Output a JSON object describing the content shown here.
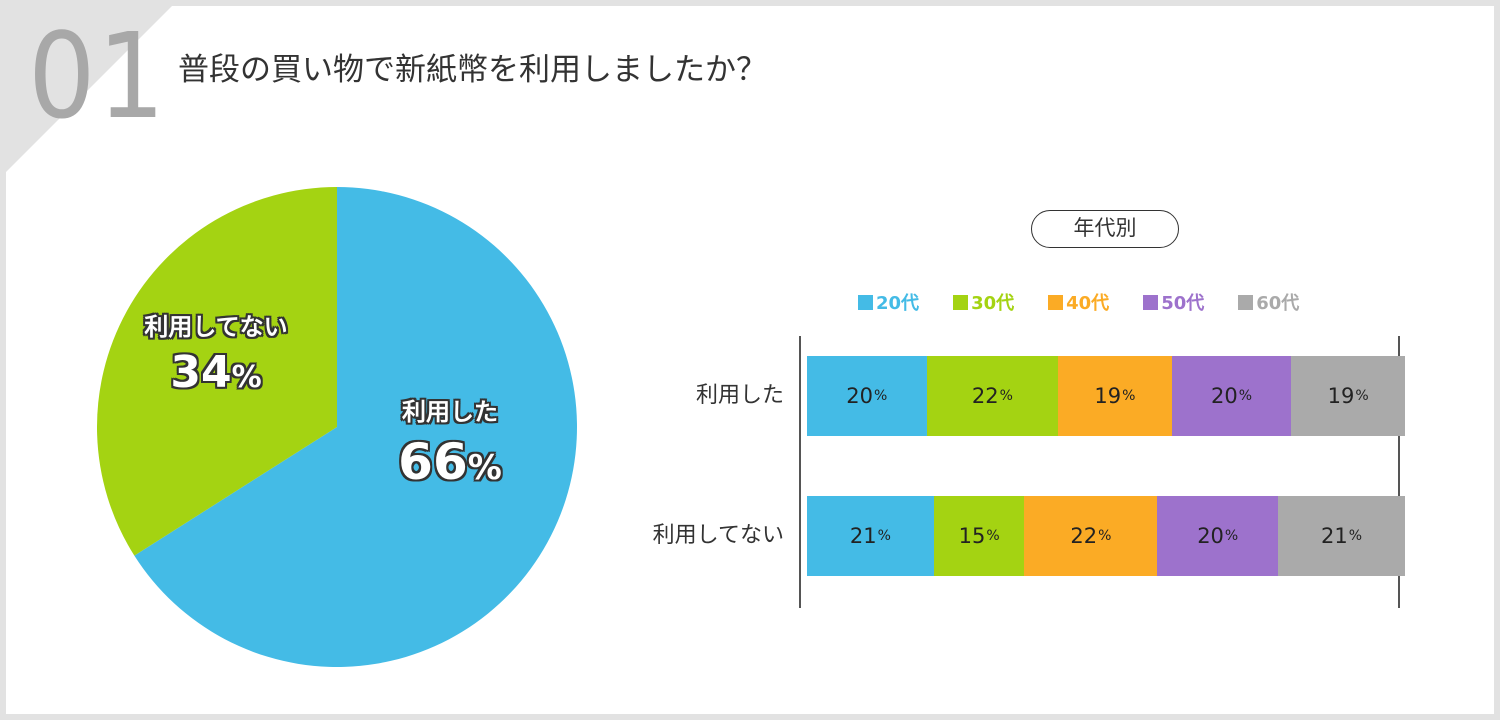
{
  "question": {
    "number": "01",
    "title": "普段の買い物で新紙幣を利用しましたか？"
  },
  "colors": {
    "used": "#44bbe6",
    "not_used": "#a4d312",
    "age20": "#44bbe6",
    "age30": "#a4d312",
    "age40": "#fbab25",
    "age50": "#9d72cc",
    "age60": "#aaaaaa"
  },
  "chart_data": [
    {
      "type": "pie",
      "slices": [
        {
          "label": "利用した",
          "value": 66,
          "display": "66",
          "unit": "%"
        },
        {
          "label": "利用してない",
          "value": 34,
          "display": "34",
          "unit": "%"
        }
      ]
    },
    {
      "type": "bar",
      "stacked": true,
      "orientation": "horizontal",
      "tag": "年代別",
      "categories": [
        "利用した",
        "利用してない"
      ],
      "series": [
        {
          "name": "20代",
          "values": [
            20,
            21
          ],
          "labels": [
            "20",
            "21"
          ]
        },
        {
          "name": "30代",
          "values": [
            22,
            15
          ],
          "labels": [
            "22",
            "15"
          ]
        },
        {
          "name": "40代",
          "values": [
            19,
            22
          ],
          "labels": [
            "19",
            "22"
          ]
        },
        {
          "name": "50代",
          "values": [
            20,
            20
          ],
          "labels": [
            "20",
            "20"
          ]
        },
        {
          "name": "60代",
          "values": [
            19,
            21
          ],
          "labels": [
            "19",
            "21"
          ]
        }
      ],
      "unit": "%",
      "legend": "top"
    }
  ]
}
